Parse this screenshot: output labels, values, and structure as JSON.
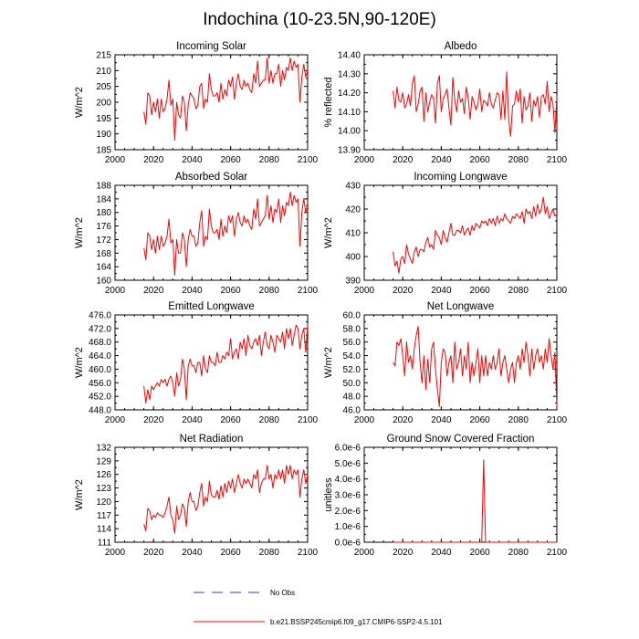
{
  "figure": {
    "title": "Indochina (10-23.5N,90-120E)",
    "colors": {
      "model": "#ff0000",
      "obs": "#3333bb",
      "axis": "#000000"
    }
  },
  "legend": {
    "obs_label": "No Obs",
    "model_label": "b.e21.BSSP245cmip6.f09_g17.CMIP6-SSP2-4.5.101"
  },
  "chart_data": [
    {
      "id": "incoming-solar",
      "type": "line",
      "title": "Incoming Solar",
      "ylabel": "W/m^2",
      "xlim": [
        2000,
        2100
      ],
      "ylim": [
        185,
        215
      ],
      "xticks": [
        "2000",
        "2020",
        "2040",
        "2060",
        "2080",
        "2100"
      ],
      "yticks": [
        "185",
        "190",
        "195",
        "200",
        "205",
        "210",
        "215"
      ],
      "x_start": 2015,
      "series": [
        {
          "name": "b.e21.BSSP245cmip6.f09_g17.CMIP6-SSP2-4.5.101",
          "values": [
            197,
            193,
            203,
            202,
            196,
            200,
            197,
            201,
            195,
            201,
            197,
            198,
            201,
            207,
            199,
            201,
            188,
            200,
            196,
            195,
            202,
            200,
            191,
            199,
            203,
            202,
            201,
            198,
            199,
            205,
            206,
            198,
            201,
            200,
            209,
            204,
            202,
            202,
            203,
            200,
            206,
            201,
            204,
            202,
            207,
            205,
            208,
            201,
            206,
            209,
            205,
            204,
            207,
            205,
            206,
            204,
            203,
            209,
            206,
            213,
            205,
            206,
            207,
            207,
            214,
            206,
            210,
            206,
            209,
            209,
            212,
            205,
            210,
            207,
            211,
            210,
            214,
            210,
            213,
            211,
            212,
            200,
            208,
            212,
            208,
            210
          ]
        }
      ]
    },
    {
      "id": "albedo",
      "type": "line",
      "title": "Albedo",
      "ylabel": "% reflected",
      "xlim": [
        2000,
        2100
      ],
      "ylim": [
        13.9,
        14.4
      ],
      "xticks": [
        "2000",
        "2020",
        "2040",
        "2060",
        "2080",
        "2100"
      ],
      "yticks": [
        "13.90",
        "14.00",
        "14.10",
        "14.20",
        "14.30",
        "14.40"
      ],
      "x_start": 2015,
      "series": [
        {
          "name": "b.e21.BSSP245cmip6.f09_g17.CMIP6-SSP2-4.5.101",
          "values": [
            14.21,
            14.12,
            14.23,
            14.16,
            14.15,
            14.2,
            14.12,
            14.14,
            14.19,
            14.13,
            14.25,
            14.29,
            14.1,
            14.14,
            14.21,
            14.23,
            14.05,
            14.2,
            14.1,
            14.15,
            14.19,
            14.17,
            14.04,
            14.25,
            14.29,
            14.1,
            14.17,
            14.19,
            14.22,
            14.12,
            14.03,
            14.28,
            14.16,
            14.1,
            14.21,
            14.15,
            14.17,
            14.09,
            14.23,
            14.17,
            14.06,
            14.18,
            14.15,
            14.11,
            14.14,
            14.22,
            14.1,
            14.16,
            14.15,
            14.13,
            14.2,
            14.14,
            14.12,
            14.16,
            14.2,
            14.19,
            14.06,
            14.21,
            14.06,
            14.31,
            14.06,
            13.97,
            14.13,
            14.14,
            14.21,
            14.15,
            14.22,
            14.04,
            14.18,
            14.11,
            14.13,
            14.2,
            14.05,
            14.16,
            14.13,
            14.18,
            14.07,
            14.18,
            14.19,
            14.14,
            14.26,
            14.1,
            14.18,
            14.14,
            13.99,
            14.18
          ]
        }
      ]
    },
    {
      "id": "absorbed-solar",
      "type": "line",
      "title": "Absorbed Solar",
      "ylabel": "W/m^2",
      "xlim": [
        2000,
        2100
      ],
      "ylim": [
        160,
        188
      ],
      "xticks": [
        "2000",
        "2020",
        "2040",
        "2060",
        "2080",
        "2100"
      ],
      "yticks": [
        "160",
        "164",
        "168",
        "172",
        "176",
        "180",
        "184",
        "188"
      ],
      "x_start": 2015,
      "series": [
        {
          "name": "b.e21.BSSP245cmip6.f09_g17.CMIP6-SSP2-4.5.101",
          "values": [
            169.5,
            166,
            174,
            173,
            169,
            172,
            168,
            173,
            169,
            173,
            170,
            171,
            173,
            178,
            171,
            172,
            161.5,
            172,
            168,
            168,
            174,
            172,
            164,
            172,
            175,
            173,
            173,
            170,
            171,
            177,
            180.5,
            170,
            173,
            172,
            181,
            176,
            174,
            174,
            175,
            172,
            178,
            173,
            176,
            174,
            179,
            177,
            179,
            173,
            178,
            180,
            177,
            176,
            179,
            177,
            178,
            176,
            175,
            181,
            178,
            184,
            176,
            177,
            178,
            179,
            185,
            178,
            182,
            177,
            181,
            180,
            184,
            177,
            182,
            179,
            183,
            182,
            186,
            182,
            185,
            183,
            184,
            170,
            180,
            184,
            180,
            182
          ]
        }
      ]
    },
    {
      "id": "incoming-longwave",
      "type": "line",
      "title": "Incoming Longwave",
      "ylabel": "W/m^2",
      "xlim": [
        2000,
        2100
      ],
      "ylim": [
        390,
        430
      ],
      "xticks": [
        "2000",
        "2020",
        "2040",
        "2060",
        "2080",
        "2100"
      ],
      "yticks": [
        "390",
        "400",
        "410",
        "420",
        "430"
      ],
      "x_start": 2015,
      "series": [
        {
          "name": "b.e21.BSSP245cmip6.f09_g17.CMIP6-SSP2-4.5.101",
          "values": [
            402,
            396,
            398,
            393,
            399,
            400,
            397,
            405,
            401,
            399,
            397,
            402,
            404,
            400,
            403,
            403,
            402,
            406,
            408,
            404,
            405,
            403,
            411,
            409,
            408,
            405,
            411,
            408,
            406,
            410,
            414,
            409,
            409,
            411,
            411,
            410,
            413,
            409,
            411,
            412,
            409,
            413,
            411,
            414,
            413,
            412,
            415,
            414,
            415,
            413,
            416,
            414,
            416,
            413,
            417,
            414,
            416,
            415,
            418,
            416,
            415,
            414,
            417,
            416,
            418,
            417,
            416,
            419,
            414,
            420,
            418,
            419,
            416,
            421,
            417,
            422,
            418,
            420,
            425,
            418,
            421,
            416,
            418,
            420,
            417,
            418
          ]
        }
      ]
    },
    {
      "id": "emitted-longwave",
      "type": "line",
      "title": "Emitted Longwave",
      "ylabel": "W/m^2",
      "xlim": [
        2000,
        2100
      ],
      "ylim": [
        448,
        476
      ],
      "xticks": [
        "2000",
        "2020",
        "2040",
        "2060",
        "2080",
        "2100"
      ],
      "yticks": [
        "448.0",
        "452.0",
        "456.0",
        "460.0",
        "464.0",
        "468.0",
        "472.0",
        "476.0"
      ],
      "x_start": 2015,
      "series": [
        {
          "name": "b.e21.BSSP245cmip6.f09_g17.CMIP6-SSP2-4.5.101",
          "values": [
            455,
            450,
            454,
            451,
            455,
            454,
            455,
            456,
            455,
            457,
            456,
            457,
            455,
            457,
            458,
            456,
            452,
            459,
            455,
            457,
            463,
            460,
            451,
            461,
            463,
            461,
            461,
            459,
            462,
            462,
            458,
            464,
            460,
            459,
            464,
            462,
            462,
            461,
            465,
            462,
            462,
            464,
            463,
            465,
            464,
            469,
            463,
            465,
            466,
            463,
            468,
            466,
            469,
            464,
            470,
            467,
            466,
            468,
            469,
            467,
            470,
            464,
            468,
            471,
            467,
            466,
            470,
            468,
            465,
            470,
            469,
            468,
            471,
            466,
            472,
            469,
            472,
            467,
            470,
            473,
            472,
            466,
            470,
            472,
            465,
            473
          ]
        }
      ]
    },
    {
      "id": "net-longwave",
      "type": "line",
      "title": "Net Longwave",
      "ylabel": "W/m^2",
      "xlim": [
        2000,
        2100
      ],
      "ylim": [
        46,
        60
      ],
      "xticks": [
        "2000",
        "2020",
        "2040",
        "2060",
        "2080",
        "2100"
      ],
      "yticks": [
        "46.0",
        "48.0",
        "50.0",
        "52.0",
        "54.0",
        "56.0",
        "58.0",
        "60.0"
      ],
      "x_start": 2015,
      "series": [
        {
          "name": "b.e21.BSSP245cmip6.f09_g17.CMIP6-SSP2-4.5.101",
          "values": [
            53,
            52.5,
            56,
            55.5,
            56.5,
            54,
            51,
            56,
            53,
            54,
            52,
            55,
            57,
            58.3,
            53,
            50,
            54,
            49,
            53.5,
            50,
            55,
            56,
            52,
            49,
            46.5,
            53,
            55,
            54.5,
            51,
            53,
            54,
            50,
            56,
            52,
            53,
            55,
            51,
            54,
            52,
            56,
            50,
            53,
            51,
            53,
            55,
            50,
            54,
            51,
            54,
            51,
            53,
            52,
            54,
            52,
            53,
            55,
            51,
            53,
            54,
            52,
            50,
            52,
            53,
            50,
            53,
            54,
            52,
            55,
            53,
            56,
            54,
            51,
            55,
            52,
            54,
            55,
            53,
            54,
            52,
            55,
            53,
            56.5,
            54,
            52,
            54.5,
            46.5
          ]
        }
      ]
    },
    {
      "id": "net-radiation",
      "type": "line",
      "title": "Net Radiation",
      "ylabel": "W/m^2",
      "xlim": [
        2000,
        2100
      ],
      "ylim": [
        111,
        132
      ],
      "xticks": [
        "2000",
        "2020",
        "2040",
        "2060",
        "2080",
        "2100"
      ],
      "yticks": [
        "111",
        "114",
        "117",
        "120",
        "123",
        "126",
        "129",
        "132"
      ],
      "x_start": 2015,
      "series": [
        {
          "name": "b.e21.BSSP245cmip6.f09_g17.CMIP6-SSP2-4.5.101",
          "values": [
            115,
            113.5,
            118.5,
            118,
            116,
            117,
            116.5,
            117.5,
            117,
            117,
            116.5,
            117.5,
            119,
            121,
            117,
            116,
            113,
            119,
            116,
            117,
            119.5,
            118.5,
            114.5,
            120,
            122,
            120,
            120,
            118,
            119,
            122,
            124,
            119,
            121,
            120,
            124.5,
            121.5,
            121,
            121,
            122.5,
            120.5,
            123.5,
            121,
            124,
            122,
            124.5,
            123,
            125,
            122,
            124,
            126,
            124,
            123,
            125,
            124,
            125,
            124,
            123,
            126,
            125,
            127,
            122,
            124,
            125,
            125,
            128,
            125,
            126,
            123,
            126,
            125,
            127,
            125,
            127,
            124,
            128,
            126,
            128,
            125,
            127,
            126,
            127,
            121,
            125,
            127,
            124,
            126
          ]
        }
      ]
    },
    {
      "id": "ground-snow-covered-fraction",
      "type": "line",
      "title": "Ground Snow Covered Fraction",
      "ylabel": "unitless",
      "xlim": [
        2000,
        2100
      ],
      "ylim": [
        0,
        6e-06
      ],
      "xticks": [
        "2000",
        "2020",
        "2040",
        "2060",
        "2080",
        "2100"
      ],
      "yticks": [
        "0.0e-6",
        "1.0e-6",
        "2.0e-6",
        "3.0e-6",
        "4.0e-6",
        "5.0e-6",
        "6.0e-6"
      ],
      "x_start": 2015,
      "series": [
        {
          "name": "b.e21.BSSP245cmip6.f09_g17.CMIP6-SSP2-4.5.101",
          "values": [
            0,
            0,
            0,
            0,
            0,
            0,
            0,
            0,
            0,
            0,
            0,
            0,
            0,
            0,
            0,
            0,
            0,
            0,
            0,
            0,
            0,
            0,
            0,
            0,
            0,
            0,
            0,
            0,
            0,
            0,
            0,
            0,
            0,
            0,
            0,
            0,
            0,
            0,
            0,
            0,
            0,
            0,
            0,
            0,
            0,
            0,
            0,
            5.2e-06,
            0,
            0,
            0,
            0,
            0,
            0,
            0,
            0,
            0,
            0,
            0,
            0,
            0,
            0,
            0,
            0,
            0,
            0,
            0,
            0,
            0,
            0,
            0,
            0,
            0,
            0,
            0,
            0,
            0,
            0,
            0,
            0,
            0,
            0,
            0,
            0,
            0,
            0
          ]
        }
      ]
    }
  ]
}
